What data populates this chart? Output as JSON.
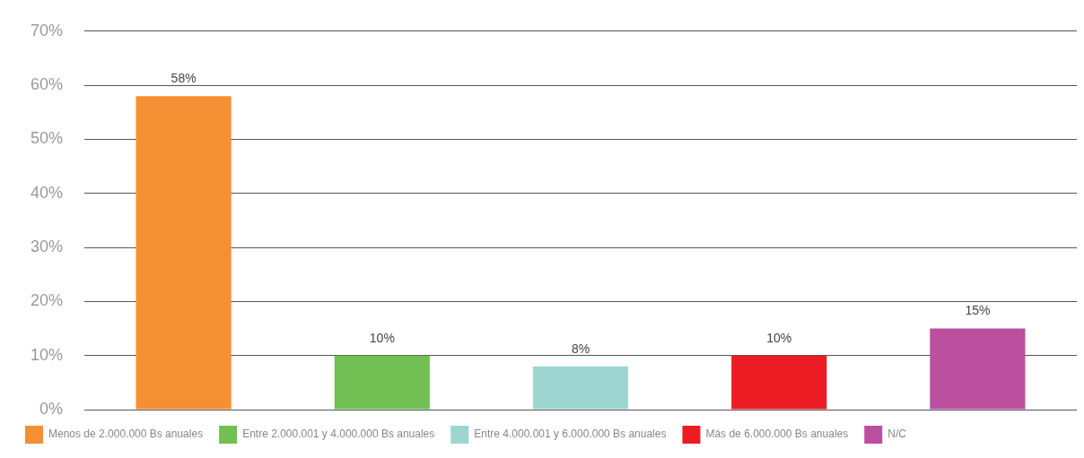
{
  "chart_data": {
    "type": "bar",
    "categories": [
      null
    ],
    "series": [
      {
        "name": "Menos de 2.000.000 Bs anuales",
        "color": "#f58f33",
        "values": [
          58
        ],
        "value_labels": [
          "58%"
        ]
      },
      {
        "name": "Entre 2.000.001 y 4.000.000 Bs anuales",
        "color": "#72bf54",
        "values": [
          10
        ],
        "value_labels": [
          "10%"
        ]
      },
      {
        "name": "Entre 4.000.001 y 6.000.000 Bs anuales",
        "color": "#9dd6d0",
        "values": [
          8
        ],
        "value_labels": [
          "8%"
        ]
      },
      {
        "name": "Más de 6.000.000 Bs anuales",
        "color": "#ed1c24",
        "values": [
          10
        ],
        "value_labels": [
          "10%"
        ]
      },
      {
        "name": "N/C",
        "color": "#bc4f9f",
        "values": [
          15
        ],
        "value_labels": [
          "15%"
        ]
      }
    ],
    "ylim": [
      0,
      70
    ],
    "yticks": [
      {
        "value": 0,
        "label": "0%"
      },
      {
        "value": 10,
        "label": "10%"
      },
      {
        "value": 20,
        "label": "20%"
      },
      {
        "value": 30,
        "label": "30%"
      },
      {
        "value": 40,
        "label": "40%"
      },
      {
        "value": 50,
        "label": "50%"
      },
      {
        "value": 60,
        "label": "60%"
      },
      {
        "value": 70,
        "label": "70%"
      }
    ],
    "grid": "y",
    "legend": "bottom",
    "tick_labels": "y"
  }
}
